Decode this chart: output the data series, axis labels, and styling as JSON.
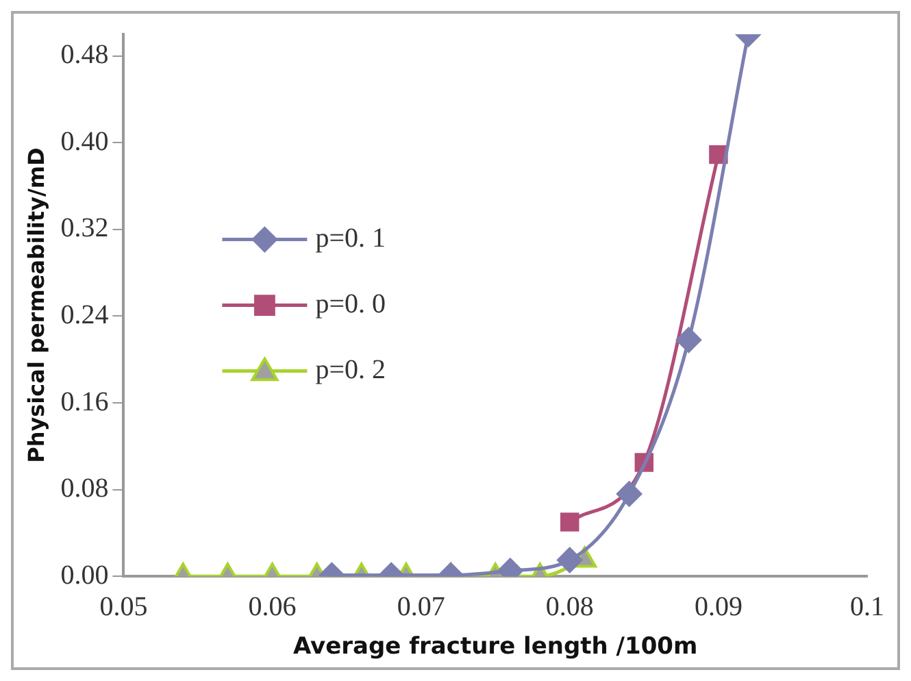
{
  "chart_data": {
    "type": "line",
    "xlabel": "Average fracture length /100m",
    "ylabel": "Physical permeability/mD",
    "series": [
      {
        "name": "p=0. 1",
        "color": "#7b7fb0",
        "marker": "diamond",
        "x": [
          0.064,
          0.068,
          0.072,
          0.076,
          0.08,
          0.084,
          0.088,
          0.092
        ],
        "values": [
          0.001,
          0.001,
          0.001,
          0.005,
          0.015,
          0.076,
          0.218,
          0.5
        ]
      },
      {
        "name": "p=0. 0",
        "color": "#b04e78",
        "marker": "square",
        "x": [
          0.08,
          0.085,
          0.09
        ],
        "values": [
          0.05,
          0.105,
          0.389
        ]
      },
      {
        "name": "p=0. 2",
        "color": "#a8d42c",
        "marker": "triangle",
        "x": [
          0.054,
          0.057,
          0.06,
          0.063,
          0.066,
          0.069,
          0.072,
          0.075,
          0.078,
          0.081
        ],
        "values": [
          0,
          0,
          0,
          0,
          0,
          0,
          0,
          0,
          0,
          0.015
        ]
      }
    ],
    "xlim": [
      0.05,
      0.1
    ],
    "xticks": [
      0.05,
      0.06,
      0.07,
      0.08,
      0.09,
      0.1
    ],
    "ylim": [
      0,
      0.5
    ],
    "yticks": [
      {
        "value": 0,
        "label": "0.00"
      },
      0.08,
      0.16,
      0.24,
      0.32,
      {
        "value": 0.4,
        "label": "0.40"
      },
      0.48
    ],
    "grid": false,
    "legend": "left"
  }
}
